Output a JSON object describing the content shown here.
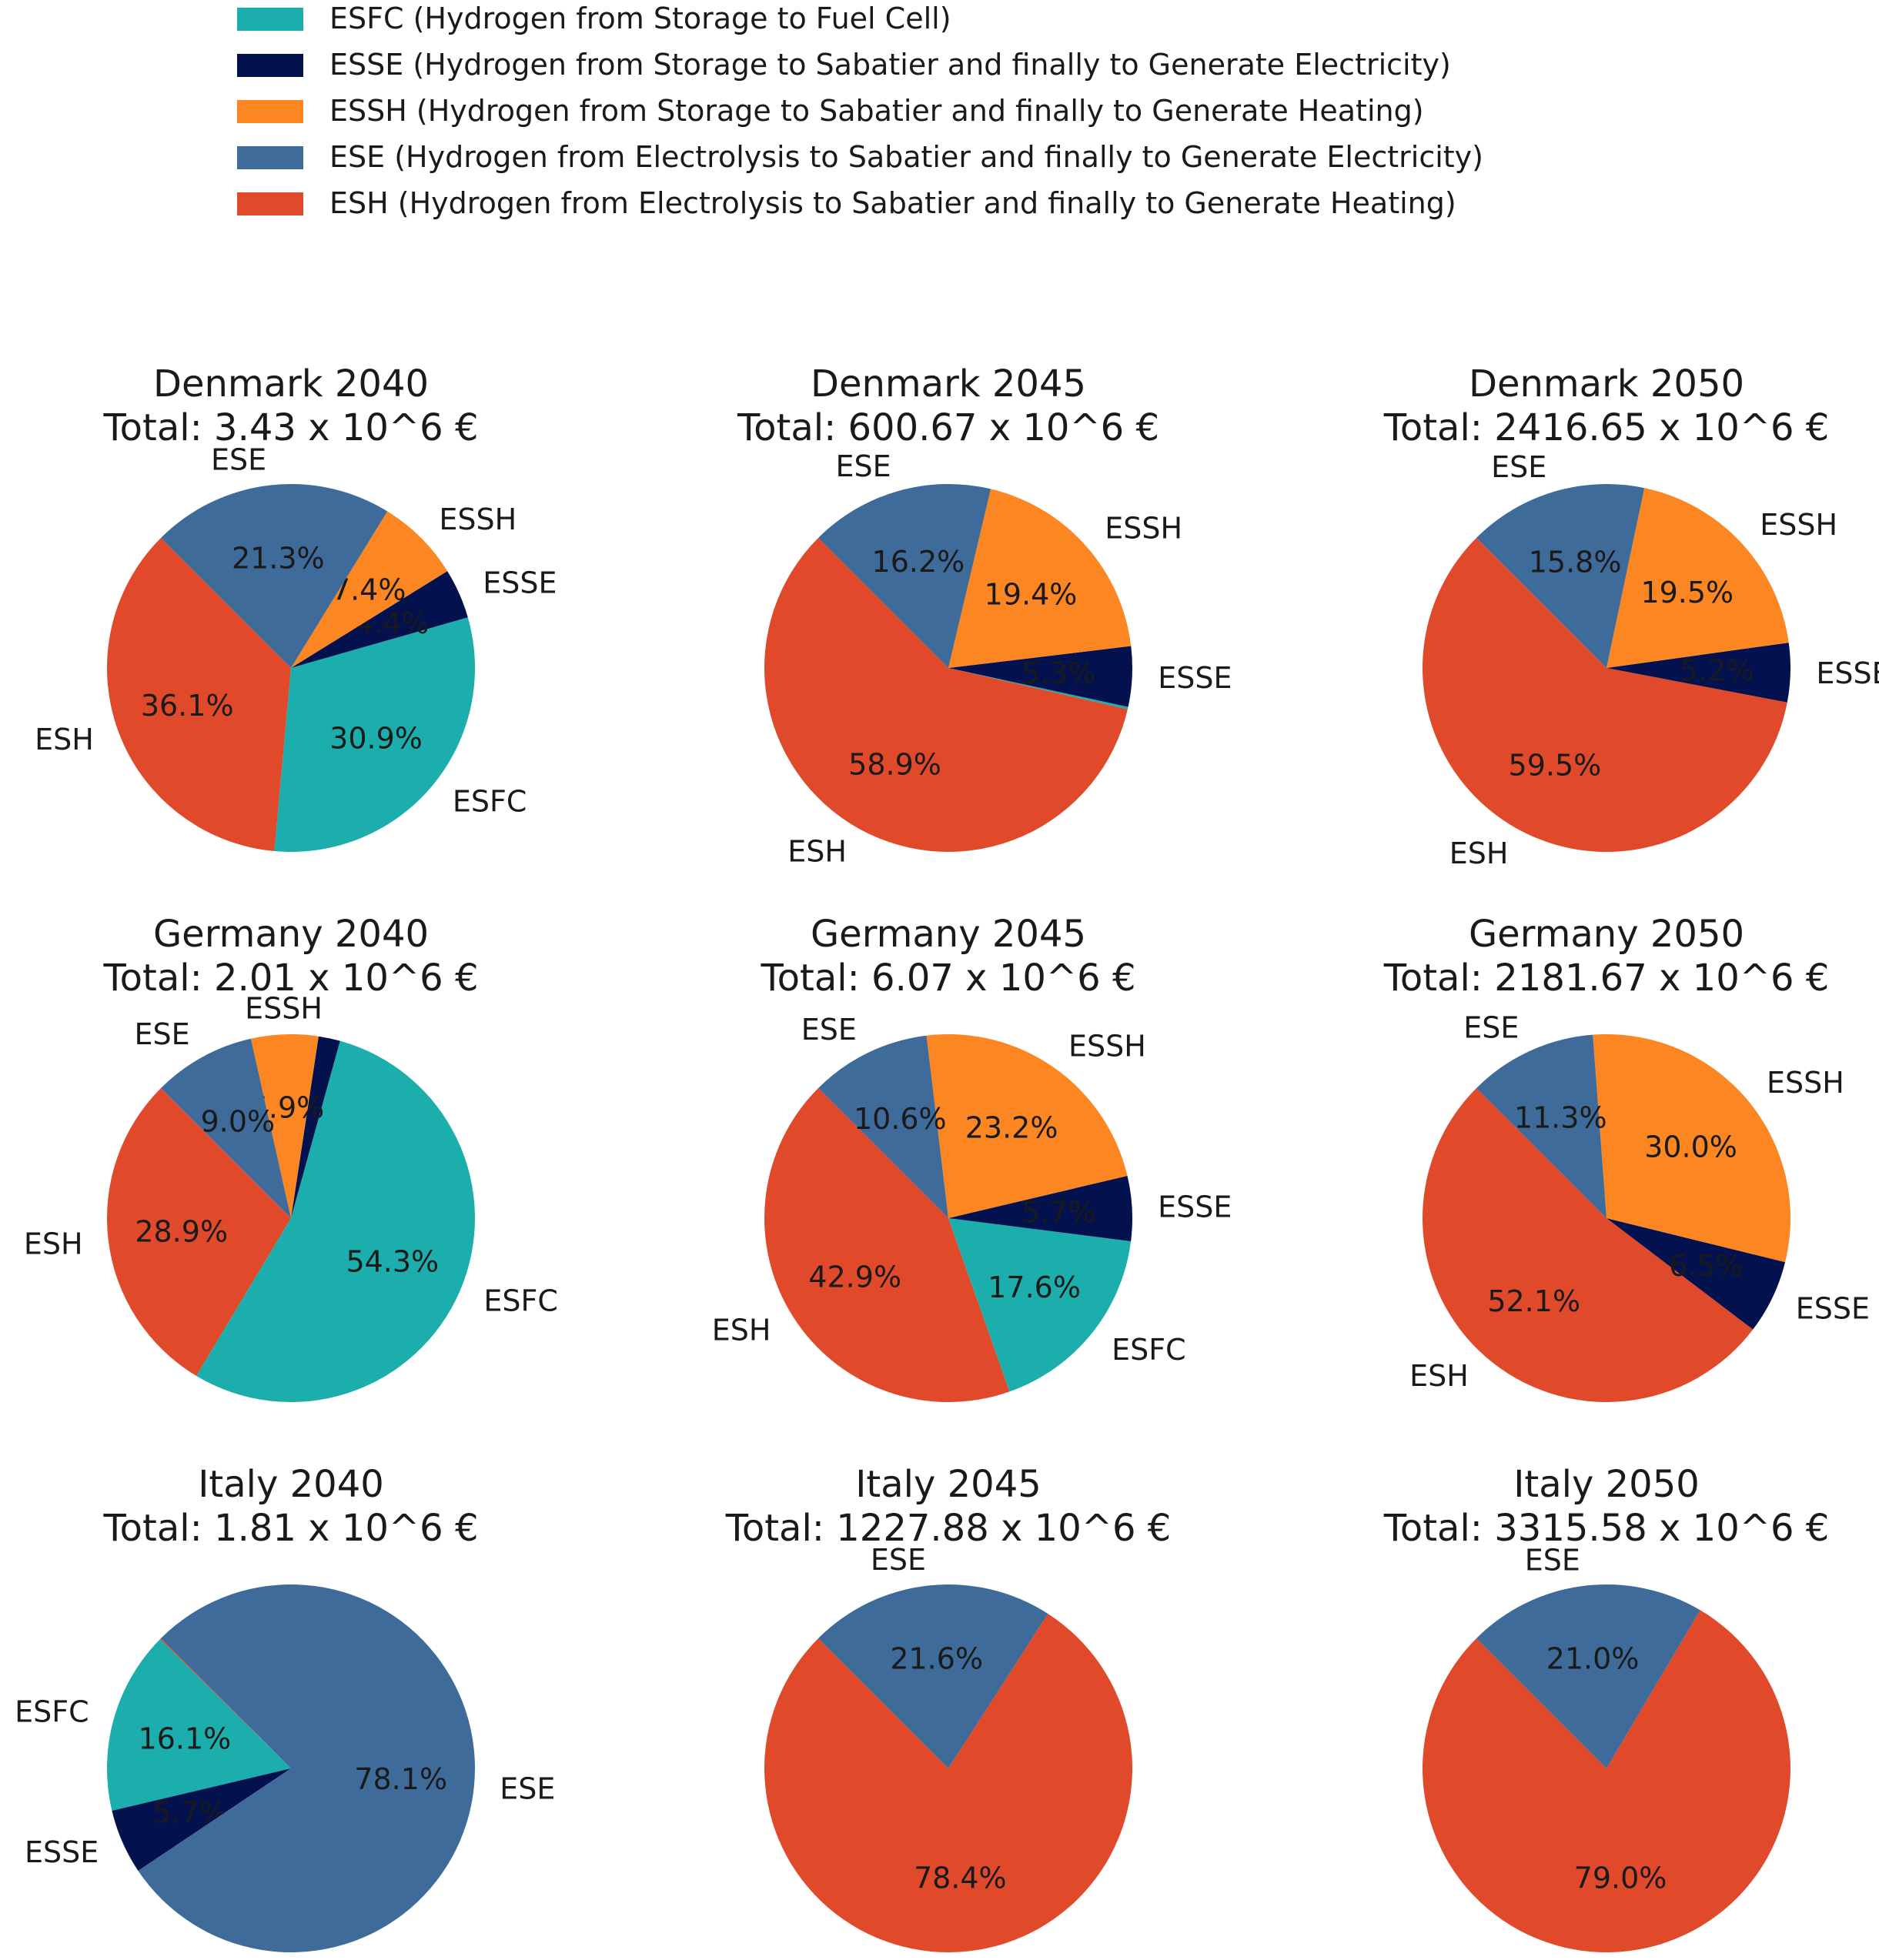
{
  "legend": [
    {
      "key": "ESFC",
      "label": "ESFC (Hydrogen from Storage to Fuel Cell)",
      "color": "#1BAEAC"
    },
    {
      "key": "ESSE",
      "label": "ESSE (Hydrogen from Storage to Sabatier and finally to Generate Electricity)",
      "color": "#03124F"
    },
    {
      "key": "ESSH",
      "label": "ESSH (Hydrogen from Storage to Sabatier and finally to Generate Heating)",
      "color": "#FB8622"
    },
    {
      "key": "ESE",
      "label": "ESE (Hydrogen from Electrolysis to Sabatier and finally to Generate Electricity)",
      "color": "#3E6B99"
    },
    {
      "key": "ESH",
      "label": "ESH (Hydrogen from Electrolysis to Sabatier and finally to Generate Heating)",
      "color": "#E04A2B"
    }
  ],
  "chart_data": [
    {
      "type": "pie",
      "title": "Denmark 2040",
      "subtitle": "Total: 3.43 x 10^6 €",
      "slices": [
        {
          "key": "ESH",
          "label": "ESH",
          "value": 36.1,
          "pct": "36.1%"
        },
        {
          "key": "ESFC",
          "label": "ESFC",
          "value": 30.9,
          "pct": "30.9%"
        },
        {
          "key": "ESSE",
          "label": "ESSE",
          "value": 4.4,
          "pct": "4.4%"
        },
        {
          "key": "ESSH",
          "label": "ESSH",
          "value": 7.4,
          "pct": "7.4%"
        },
        {
          "key": "ESE",
          "label": "ESE",
          "value": 21.3,
          "pct": "21.3%"
        }
      ]
    },
    {
      "type": "pie",
      "title": "Denmark 2045",
      "subtitle": "Total: 600.67 x 10^6 €",
      "slices": [
        {
          "key": "ESH",
          "label": "ESH",
          "value": 58.9,
          "pct": "58.9%"
        },
        {
          "key": "ESFC",
          "label": "",
          "value": 0.2,
          "pct": ""
        },
        {
          "key": "ESSE",
          "label": "ESSE",
          "value": 5.3,
          "pct": "5.3%"
        },
        {
          "key": "ESSH",
          "label": "ESSH",
          "value": 19.4,
          "pct": "19.4%"
        },
        {
          "key": "ESE",
          "label": "ESE",
          "value": 16.2,
          "pct": "16.2%"
        }
      ]
    },
    {
      "type": "pie",
      "title": "Denmark 2050",
      "subtitle": "Total: 2416.65 x 10^6 €",
      "slices": [
        {
          "key": "ESH",
          "label": "ESH",
          "value": 59.5,
          "pct": "59.5%"
        },
        {
          "key": "ESSE",
          "label": "ESSE",
          "value": 5.2,
          "pct": "5.2%"
        },
        {
          "key": "ESSH",
          "label": "ESSH",
          "value": 19.5,
          "pct": "19.5%"
        },
        {
          "key": "ESE",
          "label": "ESE",
          "value": 15.8,
          "pct": "15.8%"
        }
      ]
    },
    {
      "type": "pie",
      "title": "Germany 2040",
      "subtitle": "Total: 2.01 x 10^6 €",
      "slices": [
        {
          "key": "ESH",
          "label": "ESH",
          "value": 28.9,
          "pct": "28.9%"
        },
        {
          "key": "ESFC",
          "label": "ESFC",
          "value": 54.3,
          "pct": "54.3%"
        },
        {
          "key": "ESSE",
          "label": "",
          "value": 1.9,
          "pct": ""
        },
        {
          "key": "ESSH",
          "label": "ESSH",
          "value": 5.9,
          "pct": "5.9%"
        },
        {
          "key": "ESE",
          "label": "ESE",
          "value": 9.0,
          "pct": "9.0%"
        }
      ]
    },
    {
      "type": "pie",
      "title": "Germany 2045",
      "subtitle": "Total: 6.07 x 10^6 €",
      "slices": [
        {
          "key": "ESH",
          "label": "ESH",
          "value": 42.9,
          "pct": "42.9%"
        },
        {
          "key": "ESFC",
          "label": "ESFC",
          "value": 17.6,
          "pct": "17.6%"
        },
        {
          "key": "ESSE",
          "label": "ESSE",
          "value": 5.7,
          "pct": "5.7%"
        },
        {
          "key": "ESSH",
          "label": "ESSH",
          "value": 23.2,
          "pct": "23.2%"
        },
        {
          "key": "ESE",
          "label": "ESE",
          "value": 10.6,
          "pct": "10.6%"
        }
      ]
    },
    {
      "type": "pie",
      "title": "Germany 2050",
      "subtitle": "Total: 2181.67 x 10^6 €",
      "slices": [
        {
          "key": "ESH",
          "label": "ESH",
          "value": 52.1,
          "pct": "52.1%"
        },
        {
          "key": "ESSE",
          "label": "ESSE",
          "value": 6.5,
          "pct": "6.5%"
        },
        {
          "key": "ESSH",
          "label": "ESSH",
          "value": 30.0,
          "pct": "30.0%"
        },
        {
          "key": "ESE",
          "label": "ESE",
          "value": 11.3,
          "pct": "11.3%"
        }
      ]
    },
    {
      "type": "pie",
      "title": "Italy 2040",
      "subtitle": "Total: 1.81 x 10^6 €",
      "slices": [
        {
          "key": "ESH",
          "label": "",
          "value": 0.1,
          "pct": ""
        },
        {
          "key": "ESFC",
          "label": "ESFC",
          "value": 16.1,
          "pct": "16.1%"
        },
        {
          "key": "ESSE",
          "label": "ESSE",
          "value": 5.7,
          "pct": "5.7%"
        },
        {
          "key": "ESE",
          "label": "ESE",
          "value": 78.1,
          "pct": "78.1%"
        }
      ]
    },
    {
      "type": "pie",
      "title": "Italy 2045",
      "subtitle": "Total: 1227.88 x 10^6 €",
      "slices": [
        {
          "key": "ESH",
          "label": "ESH",
          "value": 78.4,
          "pct": "78.4%"
        },
        {
          "key": "ESE",
          "label": "ESE",
          "value": 21.6,
          "pct": "21.6%"
        }
      ]
    },
    {
      "type": "pie",
      "title": "Italy 2050",
      "subtitle": "Total: 3315.58 x 10^6 €",
      "slices": [
        {
          "key": "ESH",
          "label": "ESH",
          "value": 79.0,
          "pct": "79.0%"
        },
        {
          "key": "ESE",
          "label": "ESE",
          "value": 21.0,
          "pct": "21.0%"
        }
      ]
    }
  ]
}
